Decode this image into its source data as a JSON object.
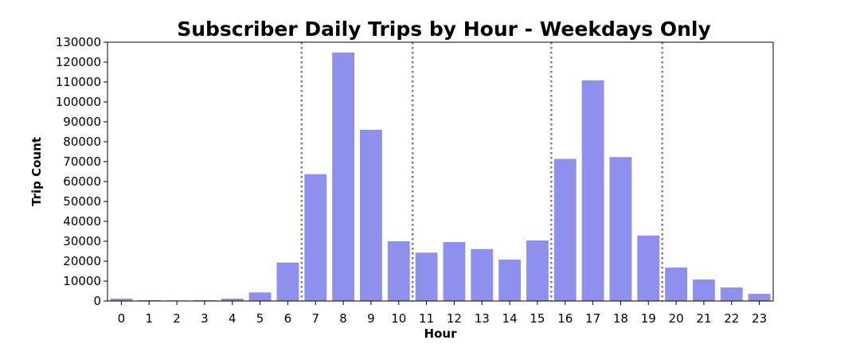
{
  "chart_data": {
    "type": "bar",
    "title": "Subscriber Daily Trips by Hour - Weekdays Only",
    "xlabel": "Hour",
    "ylabel": "Trip Count",
    "categories": [
      "0",
      "1",
      "2",
      "3",
      "4",
      "5",
      "6",
      "7",
      "8",
      "9",
      "10",
      "11",
      "12",
      "13",
      "14",
      "15",
      "16",
      "17",
      "18",
      "19",
      "20",
      "21",
      "22",
      "23"
    ],
    "values": [
      1200,
      400,
      300,
      400,
      1200,
      4300,
      19300,
      63700,
      124800,
      86000,
      30000,
      24300,
      29600,
      26100,
      20800,
      30400,
      71400,
      110800,
      72300,
      32900,
      16800,
      10800,
      6800,
      3600
    ],
    "ylim": [
      0,
      130000
    ],
    "yticks": [
      0,
      10000,
      20000,
      30000,
      40000,
      50000,
      60000,
      70000,
      80000,
      90000,
      100000,
      110000,
      120000,
      130000
    ],
    "reference_lines_between_hours": [
      [
        6,
        7
      ],
      [
        10,
        11
      ],
      [
        15,
        16
      ],
      [
        19,
        20
      ]
    ],
    "bar_color": "#8f8fee",
    "reference_line_color": "#808080",
    "grid": false
  }
}
